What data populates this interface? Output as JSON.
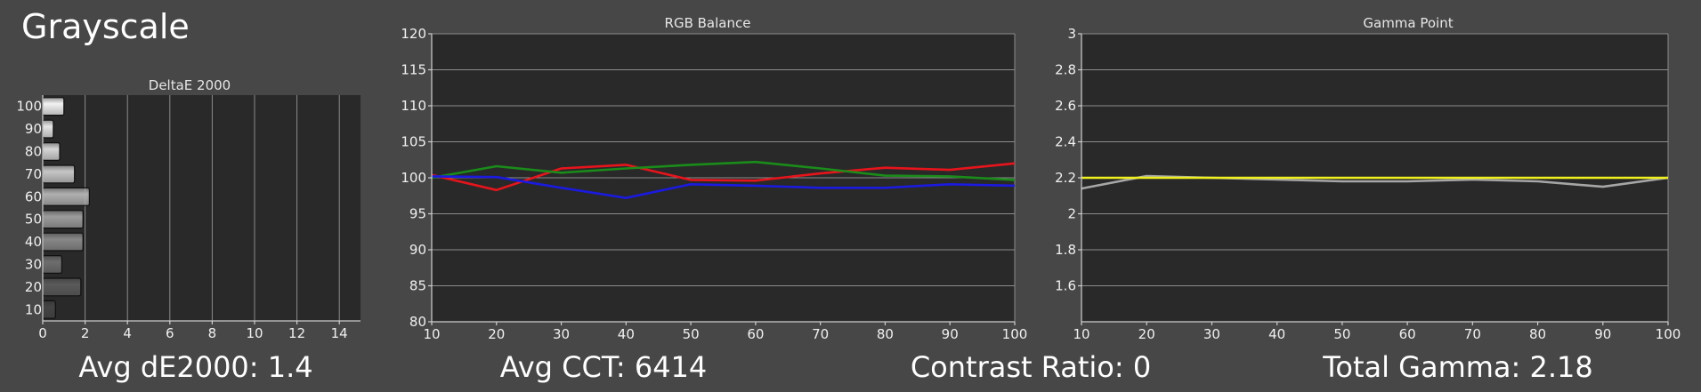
{
  "page_title": "Grayscale",
  "stats": {
    "avg_de": "Avg dE2000: 1.4",
    "avg_cct": "Avg CCT: 6414",
    "contrast": "Contrast Ratio: 0",
    "total_gamma": "Total Gamma: 2.18"
  },
  "chart_data": [
    {
      "type": "bar",
      "orientation": "horizontal",
      "title": "DeltaE 2000",
      "categories": [
        "100",
        "90",
        "80",
        "70",
        "60",
        "50",
        "40",
        "30",
        "20",
        "10"
      ],
      "values": [
        1.0,
        0.5,
        0.8,
        1.5,
        2.2,
        1.9,
        1.9,
        0.9,
        1.8,
        0.6
      ],
      "bar_shades": [
        "#f2f2f2",
        "#e6e6e6",
        "#d6d6d6",
        "#c6c6c6",
        "#b0b0b0",
        "#9c9c9c",
        "#888888",
        "#6e6e6e",
        "#5a5a5a",
        "#444444"
      ],
      "xlim": [
        0,
        15
      ],
      "xticks": [
        "0",
        "2",
        "4",
        "6",
        "8",
        "10",
        "12",
        "14"
      ],
      "xtick_values": [
        0,
        2,
        4,
        6,
        8,
        10,
        12,
        14
      ]
    },
    {
      "type": "line",
      "title": "RGB Balance",
      "x": [
        10,
        20,
        30,
        40,
        50,
        60,
        70,
        80,
        90,
        100
      ],
      "series": [
        {
          "color": "#e8141c",
          "values": [
            100.4,
            98.3,
            101.3,
            101.8,
            99.7,
            99.6,
            100.6,
            101.4,
            101.1,
            102.0
          ]
        },
        {
          "color": "#1a8c1a",
          "values": [
            100.0,
            101.6,
            100.7,
            101.3,
            101.8,
            102.2,
            101.3,
            100.3,
            100.2,
            99.7
          ]
        },
        {
          "color": "#1a1ae0",
          "values": [
            100.2,
            100.1,
            98.6,
            97.2,
            99.1,
            98.9,
            98.6,
            98.6,
            99.1,
            98.9
          ]
        }
      ],
      "xlim": [
        10,
        100
      ],
      "ylim": [
        80,
        120
      ],
      "xticks": [
        "10",
        "20",
        "30",
        "40",
        "50",
        "60",
        "70",
        "80",
        "90",
        "100"
      ],
      "xtick_values": [
        10,
        20,
        30,
        40,
        50,
        60,
        70,
        80,
        90,
        100
      ],
      "yticks": [
        "80",
        "85",
        "90",
        "95",
        "100",
        "105",
        "110",
        "115",
        "120"
      ],
      "ytick_values": [
        80,
        85,
        90,
        95,
        100,
        105,
        110,
        115,
        120
      ]
    },
    {
      "type": "line",
      "title": "Gamma Point",
      "x": [
        10,
        20,
        30,
        40,
        50,
        60,
        70,
        80,
        90,
        100
      ],
      "series": [
        {
          "color": "#a6a6a6",
          "values": [
            2.14,
            2.21,
            2.2,
            2.19,
            2.18,
            2.18,
            2.19,
            2.18,
            2.15,
            2.2
          ]
        },
        {
          "color": "#f0f01e",
          "values": [
            2.2,
            2.2,
            2.2,
            2.2,
            2.2,
            2.2,
            2.2,
            2.2,
            2.2,
            2.2
          ]
        }
      ],
      "xlim": [
        10,
        100
      ],
      "ylim": [
        1.4,
        3
      ],
      "xticks": [
        "10",
        "20",
        "30",
        "40",
        "50",
        "60",
        "70",
        "80",
        "90",
        "100"
      ],
      "xtick_values": [
        10,
        20,
        30,
        40,
        50,
        60,
        70,
        80,
        90,
        100
      ],
      "yticks": [
        "1.6",
        "1.8",
        "2",
        "2.2",
        "2.4",
        "2.6",
        "2.8",
        "3"
      ],
      "ytick_values": [
        1.6,
        1.8,
        2.0,
        2.2,
        2.4,
        2.6,
        2.8,
        3.0
      ]
    }
  ]
}
